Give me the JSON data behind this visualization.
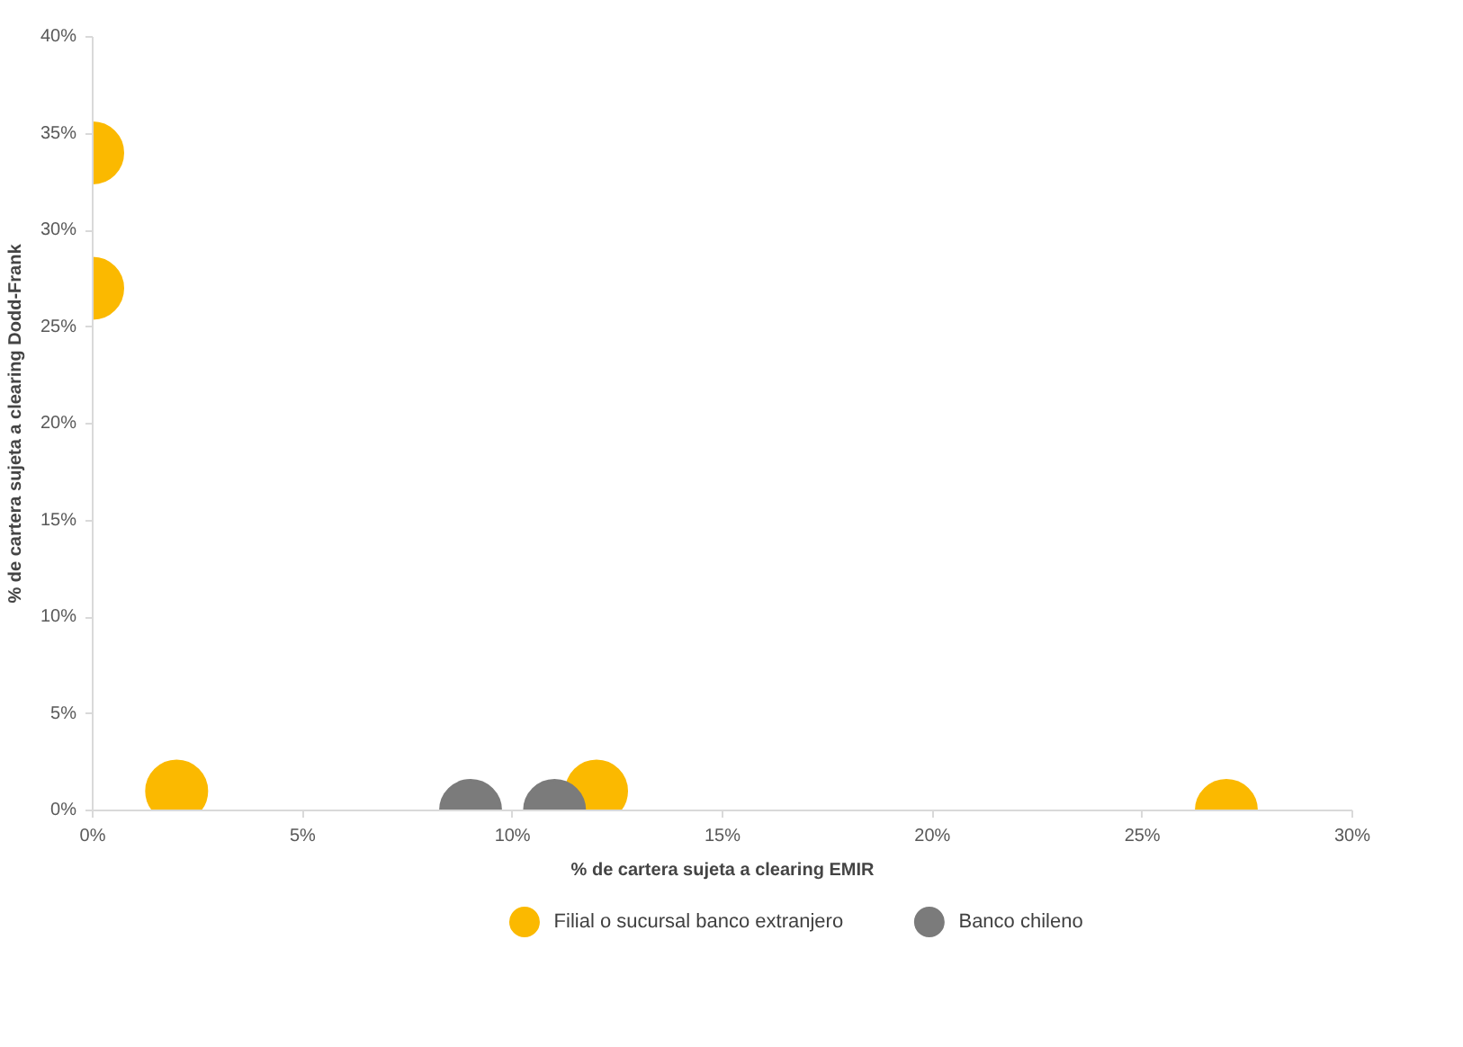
{
  "chart_data": {
    "type": "scatter",
    "xlabel": "% de cartera sujeta a clearing EMIR",
    "ylabel": "% de cartera sujeta a clearing Dodd-Frank",
    "series": [
      {
        "name": "Filial o sucursal banco extranjero",
        "color": "#fbb900",
        "x": [
          0,
          0,
          2,
          12,
          27
        ],
        "values": [
          34,
          27,
          1,
          1,
          0
        ]
      },
      {
        "name": "Banco chileno",
        "color": "#7b7b7b",
        "x": [
          9,
          11
        ],
        "values": [
          0,
          0
        ]
      }
    ],
    "xlim": [
      0,
      30
    ],
    "ylim": [
      0,
      40
    ],
    "xticks": [
      {
        "value": 0,
        "label": "0%"
      },
      {
        "value": 5,
        "label": "5%"
      },
      {
        "value": 10,
        "label": "10%"
      },
      {
        "value": 15,
        "label": "15%"
      },
      {
        "value": 20,
        "label": "20%"
      },
      {
        "value": 25,
        "label": "25%"
      },
      {
        "value": 30,
        "label": "30%"
      }
    ],
    "yticks": [
      {
        "value": 0,
        "label": "0%"
      },
      {
        "value": 5,
        "label": "5%"
      },
      {
        "value": 10,
        "label": "10%"
      },
      {
        "value": 15,
        "label": "15%"
      },
      {
        "value": 20,
        "label": "20%"
      },
      {
        "value": 25,
        "label": "25%"
      },
      {
        "value": 30,
        "label": "30%"
      },
      {
        "value": 35,
        "label": "35%"
      },
      {
        "value": 40,
        "label": "40%"
      }
    ],
    "marker": "circle",
    "legend": "bottom",
    "grid": false
  }
}
